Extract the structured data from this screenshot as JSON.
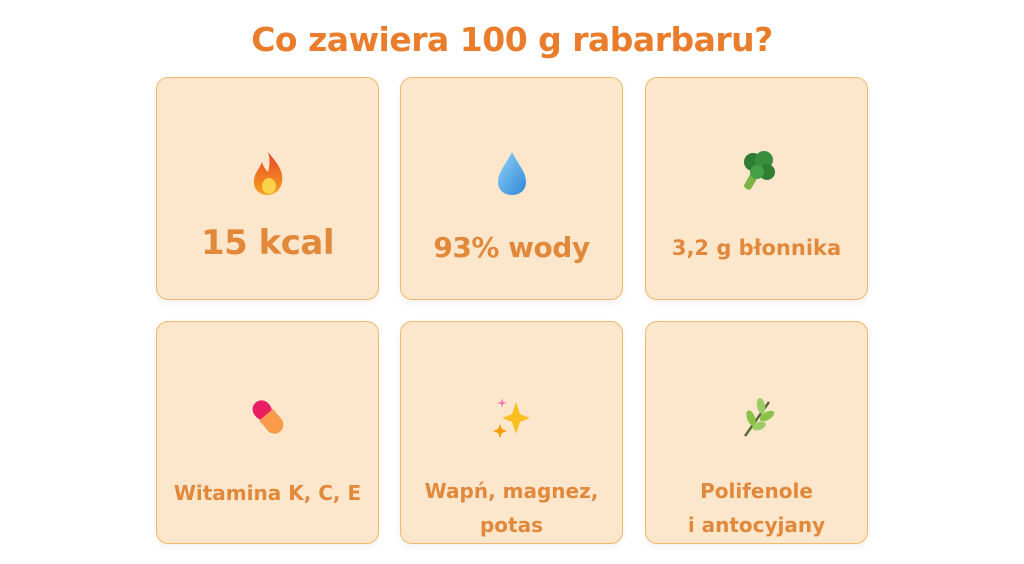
{
  "title": "Co zawiera 100 g rabarbaru?",
  "colors": {
    "title": "#ea7d2c",
    "text": "#e2883b",
    "card_bg": "#fde7cc",
    "card_border": "#f2b86a"
  },
  "cards": [
    {
      "icon": "fire-icon",
      "label": "15 kcal"
    },
    {
      "icon": "droplet-icon",
      "label": "93% wody"
    },
    {
      "icon": "broccoli-icon",
      "label": "3,2 g błonnika"
    },
    {
      "icon": "pill-icon",
      "label": "Witamina K, C, E"
    },
    {
      "icon": "sparkles-icon",
      "label_lines": [
        "Wapń, magnez,",
        "potas"
      ]
    },
    {
      "icon": "herb-icon",
      "label_lines": [
        "Polifenole",
        "i antocyjany"
      ]
    }
  ]
}
